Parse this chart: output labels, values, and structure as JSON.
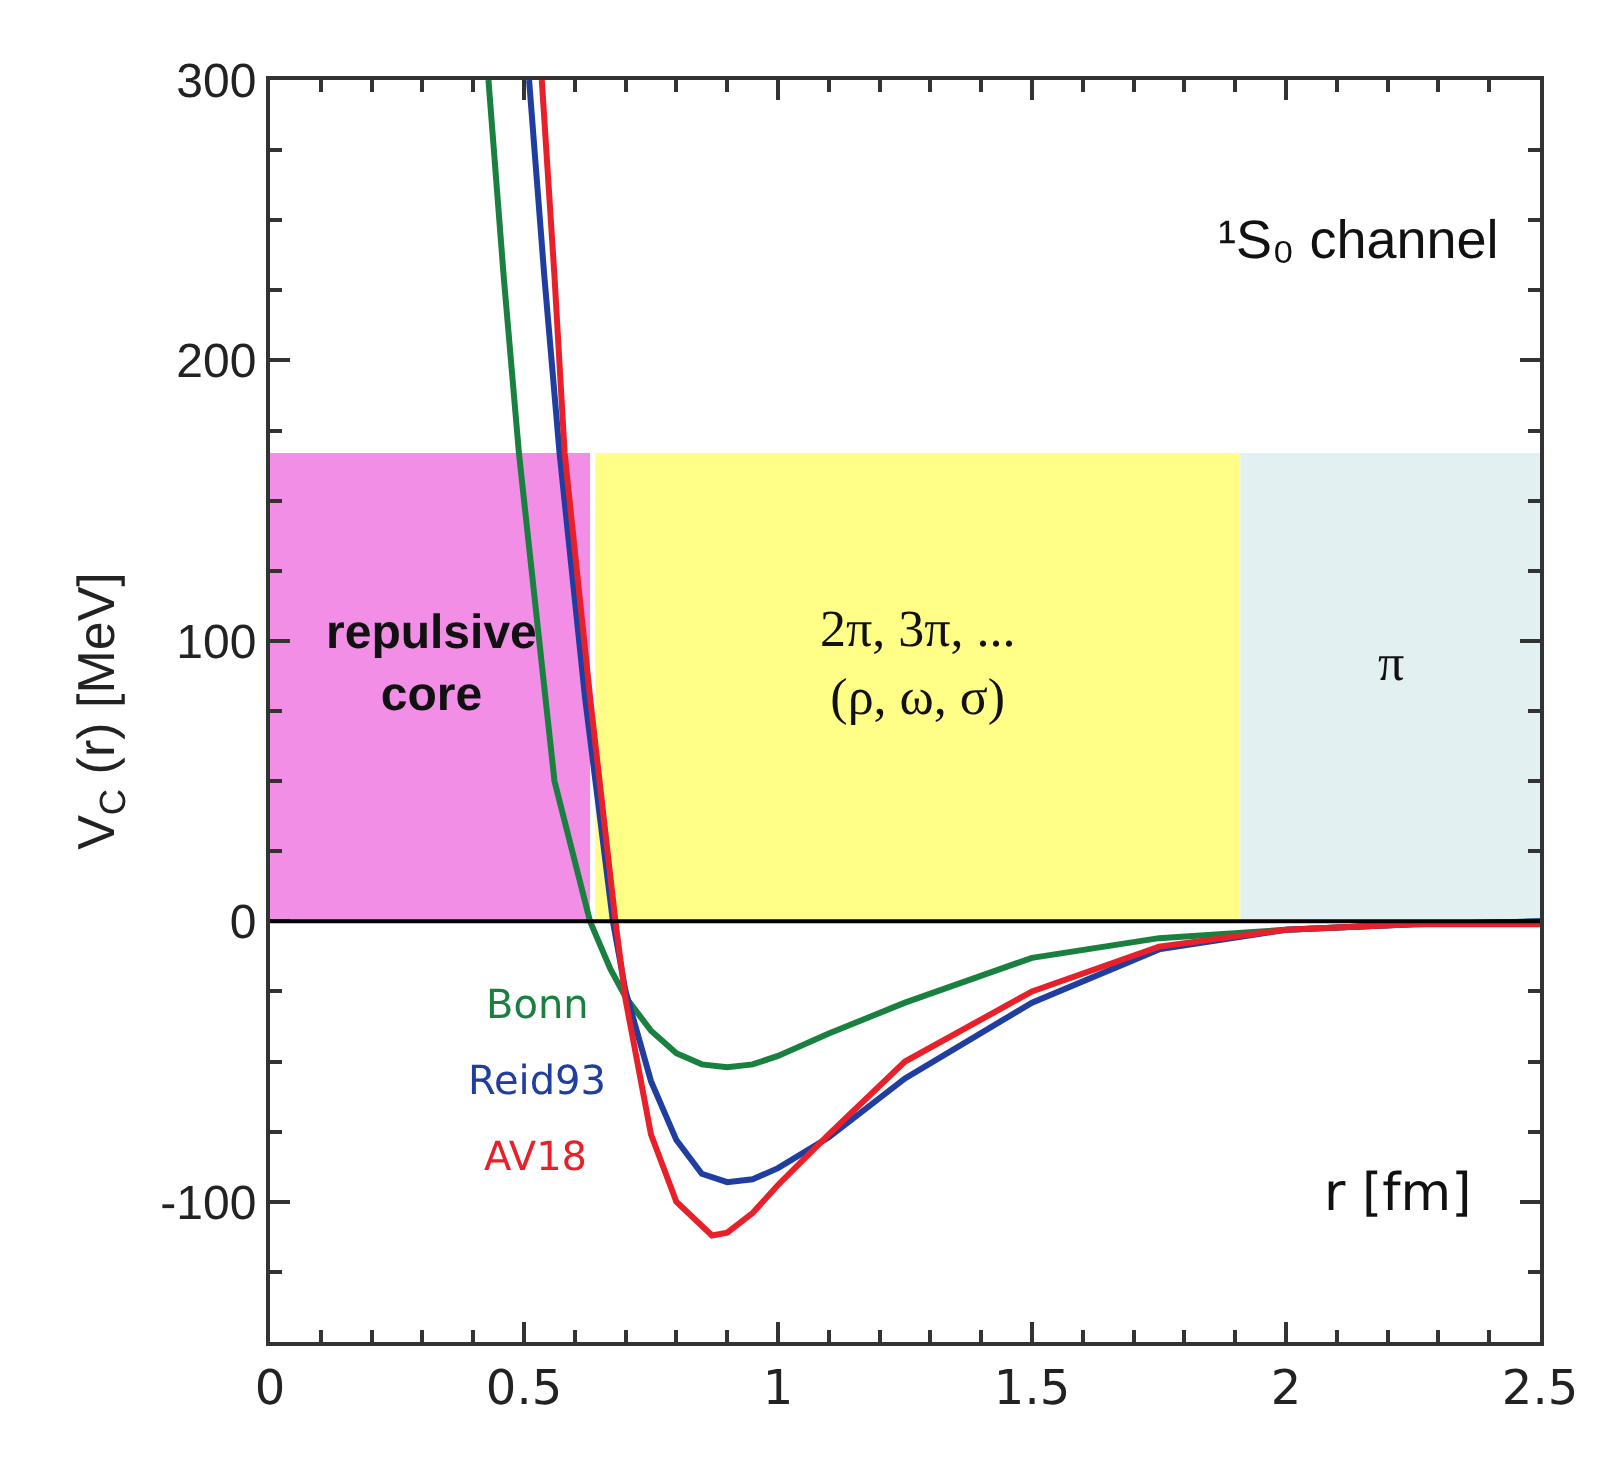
{
  "chart_data": {
    "type": "line",
    "title": "¹S₀ channel",
    "xlabel": "r [fm]",
    "ylabel": "V$_{C}$ (r) [MeV]",
    "xlim": [
      0,
      2.5
    ],
    "xticks": [
      0,
      0.5,
      1,
      1.5,
      2,
      2.5
    ],
    "ylim": [
      -150,
      300
    ],
    "yticks": [
      -100,
      0,
      100,
      200,
      300
    ],
    "grid": false,
    "legend": false,
    "marker": "none",
    "line_style": "solid",
    "series": [
      {
        "name": "Bonn",
        "color": "#1a8040",
        "x": [
          0.43,
          0.46,
          0.49,
          0.53,
          0.56,
          0.63,
          0.67,
          0.7,
          0.75,
          0.8,
          0.85,
          0.9,
          0.95,
          1.0,
          1.1,
          1.25,
          1.5,
          1.75,
          2.0,
          2.25,
          2.5
        ],
        "values": [
          300,
          230,
          167,
          100,
          50,
          0,
          -17,
          -27,
          -39,
          -47,
          -51,
          -52,
          -51,
          -48,
          -40,
          -29,
          -13,
          -6,
          -3,
          -1,
          0
        ]
      },
      {
        "name": "Reid93",
        "color": "#1f3ea0",
        "x": [
          0.51,
          0.54,
          0.57,
          0.62,
          0.675,
          0.7,
          0.75,
          0.8,
          0.85,
          0.9,
          0.95,
          1.0,
          1.1,
          1.25,
          1.5,
          1.75,
          2.0,
          2.25,
          2.5
        ],
        "values": [
          300,
          230,
          167,
          80,
          0,
          -25,
          -57,
          -78,
          -90,
          -93,
          -92,
          -88,
          -77,
          -56,
          -29,
          -10,
          -3,
          -1,
          0
        ]
      },
      {
        "name": "AV18",
        "color": "#e8202a",
        "x": [
          0.535,
          0.56,
          0.58,
          0.63,
          0.68,
          0.7,
          0.75,
          0.8,
          0.87,
          0.9,
          0.95,
          1.0,
          1.1,
          1.25,
          1.5,
          1.75,
          2.0,
          2.25,
          2.5
        ],
        "values": [
          300,
          230,
          167,
          80,
          0,
          -28,
          -76,
          -100,
          -112,
          -111,
          -104,
          -94,
          -76,
          -50,
          -25,
          -9,
          -3,
          -1,
          -1
        ]
      }
    ],
    "bands": [
      {
        "axis": "x",
        "from": 0,
        "to": 0.63,
        "label": "repulsive\ncore",
        "color": "#f38ee6"
      },
      {
        "axis": "x",
        "from": 0.64,
        "to": 1.91,
        "label": "2π, 3π, ...\n(ρ, ω, σ)",
        "color": "#ffff88"
      },
      {
        "axis": "x",
        "from": 1.91,
        "to": 2.5,
        "label": "π",
        "color": "#e2f0f2"
      }
    ],
    "ref_lines": [
      {
        "axis": "y",
        "value": 0,
        "color": "#000000"
      }
    ]
  }
}
